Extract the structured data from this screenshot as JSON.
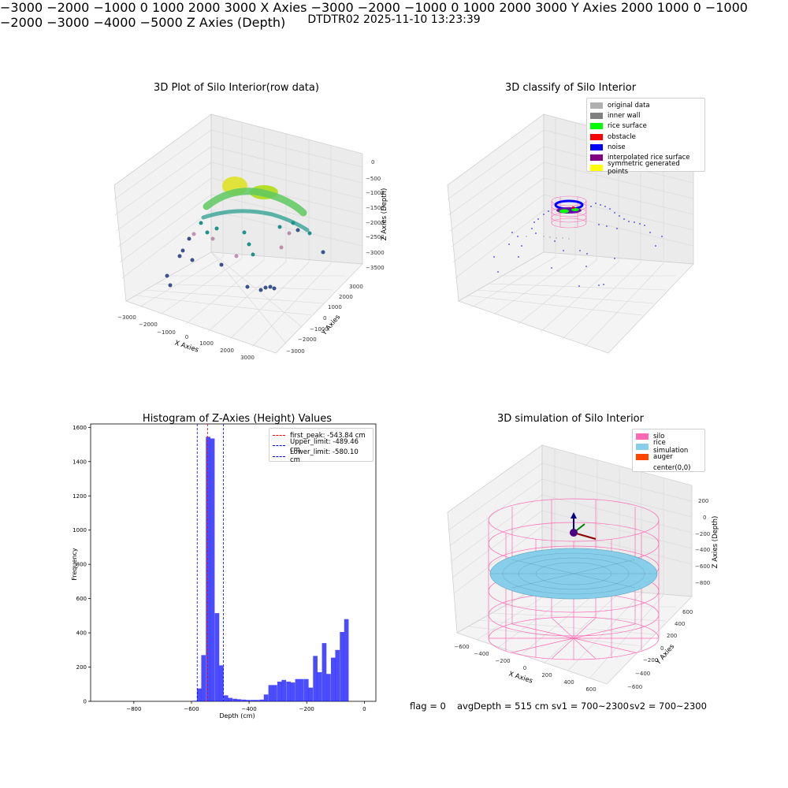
{
  "suptitle": "DTDTR02 2025-11-10 13:23:39",
  "panels": {
    "raw": {
      "title": "3D Plot of Silo Interior(row data)",
      "xlabel": "X Axies",
      "ylabel": "Y Axies",
      "zlabel": "Z Axies (Depth)",
      "xticks": [
        "−3000",
        "−2000",
        "−1000",
        "0",
        "1000",
        "2000",
        "3000"
      ],
      "yticks": [
        "−3000",
        "−2000",
        "−1000",
        "0",
        "1000",
        "2000",
        "3000"
      ],
      "zticks": [
        "0",
        "−500",
        "−1000",
        "−1500",
        "−2000",
        "−2500",
        "−3000",
        "−3500"
      ]
    },
    "classify": {
      "title": "3D classify of Silo Interior",
      "xlabel": "X Axies",
      "ylabel": "Y Axies",
      "zlabel": "Z Axies (Depth)",
      "xticks": [
        "−3000",
        "−2000",
        "−1000",
        "0",
        "1000",
        "2000",
        "3000"
      ],
      "yticks": [
        "−3000",
        "−2000",
        "−1000",
        "0",
        "1000",
        "2000",
        "3000"
      ],
      "zticks": [
        "2000",
        "1000",
        "0",
        "−1000",
        "−2000",
        "−3000",
        "−4000",
        "−5000"
      ],
      "legend": [
        {
          "label": "original data",
          "color": "#b0b0b0"
        },
        {
          "label": "inner wall",
          "color": "#808080"
        },
        {
          "label": "rice surface",
          "color": "#00ff00"
        },
        {
          "label": "obstacle",
          "color": "#ff0000"
        },
        {
          "label": "noise",
          "color": "#0000ff"
        },
        {
          "label": "interpolated rice surface",
          "color": "#800080"
        },
        {
          "label": "symmetric generated points",
          "color": "#ffff00"
        }
      ]
    },
    "simulation": {
      "title": "3D simulation of Silo Interior",
      "xlabel": "X Axies",
      "ylabel": "Y Axies",
      "zlabel": "Z Axies (Depth)",
      "xticks": [
        "−600",
        "−400",
        "−200",
        "0",
        "200",
        "400",
        "600"
      ],
      "yticks": [
        "−600",
        "−400",
        "−200",
        "0",
        "200",
        "400",
        "600"
      ],
      "zticks": [
        "200",
        "0",
        "−200",
        "−400",
        "−600",
        "−800"
      ],
      "legend": [
        {
          "label": "silo",
          "color": "#ff69b4"
        },
        {
          "label": "rice simulation",
          "color": "#87ceeb"
        },
        {
          "label": "auger",
          "color": "#ff4500"
        },
        {
          "label": "center(0,0)",
          "color": ""
        }
      ]
    }
  },
  "footer": {
    "flag": "flag = 0",
    "avg_depth": "avgDepth = 515 cm",
    "sv1": "sv1 = 700~2300",
    "sv2": "sv2 = 700~2300"
  },
  "chart_data": [
    {
      "type": "scatter",
      "title": "3D Plot of Silo Interior(row data)",
      "xlabel": "X Axies",
      "ylabel": "Y Axies",
      "zlabel": "Z Axies (Depth)",
      "xlim": [
        -3000,
        3000
      ],
      "ylim": [
        -3000,
        3000
      ],
      "zlim": [
        -3500,
        0
      ]
    },
    {
      "type": "scatter",
      "title": "3D classify of Silo Interior",
      "xlabel": "X Axies",
      "ylabel": "Y Axies",
      "zlabel": "Z Axies (Depth)",
      "xlim": [
        -3000,
        3000
      ],
      "ylim": [
        -3000,
        3000
      ],
      "zlim": [
        -5000,
        2000
      ],
      "legend_loc": "upper right"
    },
    {
      "type": "bar",
      "title": "Histogram of Z-Axies (Height) Values",
      "xlabel": "Depth (cm)",
      "ylabel": "Frequency",
      "xlim": [
        -950,
        40
      ],
      "ylim": [
        0,
        1620
      ],
      "xticks": [
        -800,
        -600,
        -400,
        -200,
        0
      ],
      "yticks": [
        0,
        200,
        400,
        600,
        800,
        1000,
        1200,
        1400,
        1600
      ],
      "bin_width": 15.5,
      "bins": [
        {
          "x": -597,
          "v": 3
        },
        {
          "x": -581,
          "v": 75
        },
        {
          "x": -566,
          "v": 270
        },
        {
          "x": -550,
          "v": 1545
        },
        {
          "x": -535,
          "v": 1535
        },
        {
          "x": -519,
          "v": 515
        },
        {
          "x": -504,
          "v": 210
        },
        {
          "x": -488,
          "v": 35
        },
        {
          "x": -473,
          "v": 20
        },
        {
          "x": -457,
          "v": 15
        },
        {
          "x": -442,
          "v": 12
        },
        {
          "x": -426,
          "v": 10
        },
        {
          "x": -411,
          "v": 8
        },
        {
          "x": -395,
          "v": 8
        },
        {
          "x": -380,
          "v": 8
        },
        {
          "x": -364,
          "v": 10
        },
        {
          "x": -349,
          "v": 40
        },
        {
          "x": -333,
          "v": 95
        },
        {
          "x": -318,
          "v": 95
        },
        {
          "x": -302,
          "v": 115
        },
        {
          "x": -287,
          "v": 125
        },
        {
          "x": -271,
          "v": 115
        },
        {
          "x": -256,
          "v": 110
        },
        {
          "x": -240,
          "v": 130
        },
        {
          "x": -225,
          "v": 130
        },
        {
          "x": -209,
          "v": 130
        },
        {
          "x": -194,
          "v": 80
        },
        {
          "x": -178,
          "v": 265
        },
        {
          "x": -163,
          "v": 170
        },
        {
          "x": -147,
          "v": 340
        },
        {
          "x": -132,
          "v": 160
        },
        {
          "x": -116,
          "v": 255
        },
        {
          "x": -101,
          "v": 300
        },
        {
          "x": -85,
          "v": 405
        },
        {
          "x": -70,
          "v": 480
        }
      ],
      "color": "#0000ff",
      "vlines": [
        {
          "name": "first_peak: -543.84 cm",
          "x": -543.84,
          "color": "#ff0000"
        },
        {
          "name": "Upper_limit: -489.46 cm",
          "x": -489.46,
          "color": "#0000ff"
        },
        {
          "name": "Lower_limit: -580.10 cm",
          "x": -580.1,
          "color": "#0000ff"
        }
      ],
      "legend_loc": "upper right"
    },
    {
      "type": "surface",
      "title": "3D simulation of Silo Interior",
      "xlabel": "X Axies",
      "ylabel": "Y Axies",
      "zlabel": "Z Axies (Depth)",
      "xlim": [
        -650,
        650
      ],
      "ylim": [
        -650,
        650
      ],
      "zlim": [
        -900,
        300
      ],
      "legend_loc": "upper right"
    }
  ]
}
